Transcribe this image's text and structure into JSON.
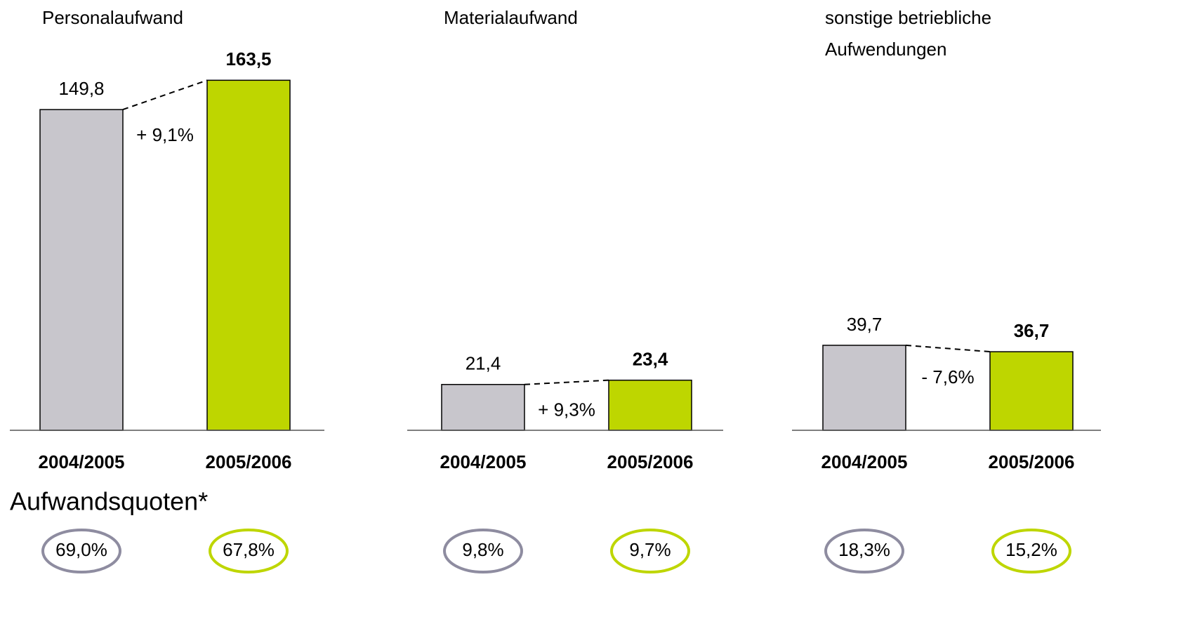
{
  "chart_data": [
    {
      "type": "bar",
      "title": [
        "Personalaufwand"
      ],
      "categories": [
        "2004/2005",
        "2005/2006"
      ],
      "values": [
        149.8,
        163.5
      ],
      "value_labels": [
        "149,8",
        "163,5"
      ],
      "colors": [
        "#c8c6cc",
        "#bed600"
      ],
      "annotation": "+ 9,1%"
    },
    {
      "type": "bar",
      "title": [
        "Materialaufwand"
      ],
      "categories": [
        "2004/2005",
        "2005/2006"
      ],
      "values": [
        21.4,
        23.4
      ],
      "value_labels": [
        "21,4",
        "23,4"
      ],
      "colors": [
        "#c8c6cc",
        "#bed600"
      ],
      "annotation": "+ 9,3%"
    },
    {
      "type": "bar",
      "title": [
        "sonstige betriebliche",
        "Aufwendungen"
      ],
      "categories": [
        "2004/2005",
        "2005/2006"
      ],
      "values": [
        39.7,
        36.7
      ],
      "value_labels": [
        "39,7",
        "36,7"
      ],
      "colors": [
        "#c8c6cc",
        "#bed600"
      ],
      "annotation": "- 7,6%"
    }
  ],
  "quotes": {
    "title": "Aufwandsquoten*",
    "values": [
      [
        "69,0%",
        "67,8%"
      ],
      [
        "9,8%",
        "9,7%"
      ],
      [
        "18,3%",
        "15,2%"
      ]
    ],
    "colors": [
      "#8e8ca0",
      "#bed600"
    ]
  }
}
